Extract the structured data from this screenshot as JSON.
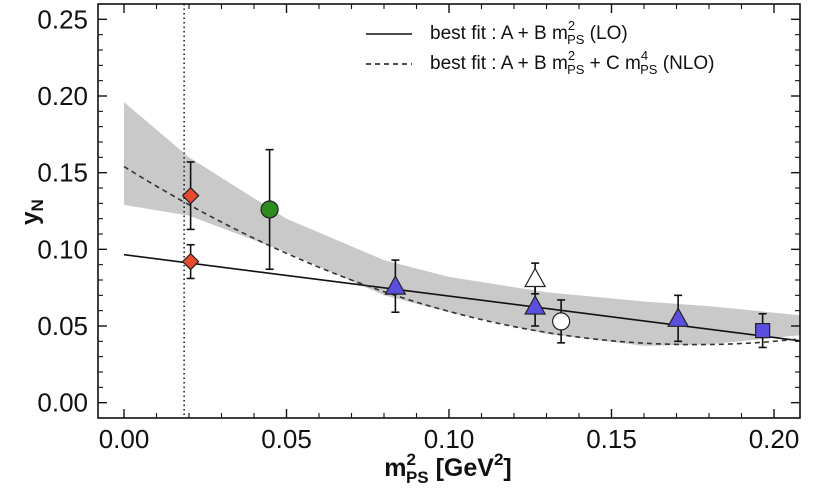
{
  "chart_data": {
    "type": "scatter",
    "xlabel": {
      "main": "m",
      "sup": "2",
      "sub": "PS",
      "units": "[GeV",
      "units_sup": "2",
      "units_close": "]"
    },
    "ylabel": "y",
    "ylabel_sub": "N",
    "xlim": [
      -0.008,
      0.208
    ],
    "ylim": [
      -0.01,
      0.26
    ],
    "xticks": [
      0.0,
      0.05,
      0.1,
      0.15,
      0.2
    ],
    "yticks": [
      0.0,
      0.05,
      0.1,
      0.15,
      0.2,
      0.25
    ],
    "xtick_labels": [
      "0.00",
      "0.05",
      "0.10",
      "0.15",
      "0.20"
    ],
    "ytick_labels": [
      "0.00",
      "0.05",
      "0.10",
      "0.15",
      "0.20",
      "0.25"
    ],
    "physical_point_x": 0.0185,
    "legend": [
      {
        "style": "solid",
        "prefix": "best fit :  A + B m",
        "sup1": "2",
        "sub1": "PS",
        "suffix": " (LO)"
      },
      {
        "style": "dashed",
        "prefix": "best fit :  A + B m",
        "sup1": "2",
        "sub1": "PS",
        "mid": " + C m",
        "sup2": "4",
        "sub2": "PS",
        "suffix": " (NLO)"
      }
    ],
    "fits": {
      "lo": {
        "name": "LO fit",
        "intercept": 0.0965,
        "slope": -0.27
      },
      "nlo": {
        "name": "NLO fit",
        "A": 0.154,
        "B": -1.32,
        "C": 3.75
      },
      "band": {
        "upper": [
          [
            0.0,
            0.196
          ],
          [
            0.02,
            0.16
          ],
          [
            0.05,
            0.12
          ],
          [
            0.08,
            0.093
          ],
          [
            0.1,
            0.082
          ],
          [
            0.13,
            0.072
          ],
          [
            0.16,
            0.066
          ],
          [
            0.18,
            0.063
          ],
          [
            0.208,
            0.057
          ]
        ],
        "lower": [
          [
            0.0,
            0.129
          ],
          [
            0.02,
            0.122
          ],
          [
            0.05,
            0.098
          ],
          [
            0.08,
            0.07
          ],
          [
            0.1,
            0.059
          ],
          [
            0.13,
            0.045
          ],
          [
            0.16,
            0.037
          ],
          [
            0.18,
            0.038
          ],
          [
            0.208,
            0.044
          ]
        ]
      }
    },
    "series": [
      {
        "name": "red diamonds",
        "marker": "diamond",
        "color": "#e84a2f",
        "points": [
          {
            "x": 0.0205,
            "y": 0.135,
            "err": 0.022
          },
          {
            "x": 0.0205,
            "y": 0.092,
            "err": 0.011
          }
        ]
      },
      {
        "name": "green circle",
        "marker": "circle",
        "color": "#2e8b1f",
        "points": [
          {
            "x": 0.0448,
            "y": 0.126,
            "err": 0.039
          }
        ]
      },
      {
        "name": "blue triangles",
        "marker": "triangle",
        "color": "#5b4fe0",
        "points": [
          {
            "x": 0.0835,
            "y": 0.076,
            "err": 0.017
          },
          {
            "x": 0.1265,
            "y": 0.063,
            "err": 0.013
          },
          {
            "x": 0.1705,
            "y": 0.055,
            "err": 0.015
          }
        ]
      },
      {
        "name": "open triangle",
        "marker": "triangle-open",
        "color": "#ffffff",
        "points": [
          {
            "x": 0.1265,
            "y": 0.081,
            "err": 0.01
          }
        ]
      },
      {
        "name": "open circle",
        "marker": "circle-open",
        "color": "#ffffff",
        "points": [
          {
            "x": 0.1345,
            "y": 0.053,
            "err": 0.014
          }
        ]
      },
      {
        "name": "blue square",
        "marker": "square",
        "color": "#5b4fe0",
        "points": [
          {
            "x": 0.1965,
            "y": 0.047,
            "err": 0.011
          }
        ]
      }
    ]
  }
}
